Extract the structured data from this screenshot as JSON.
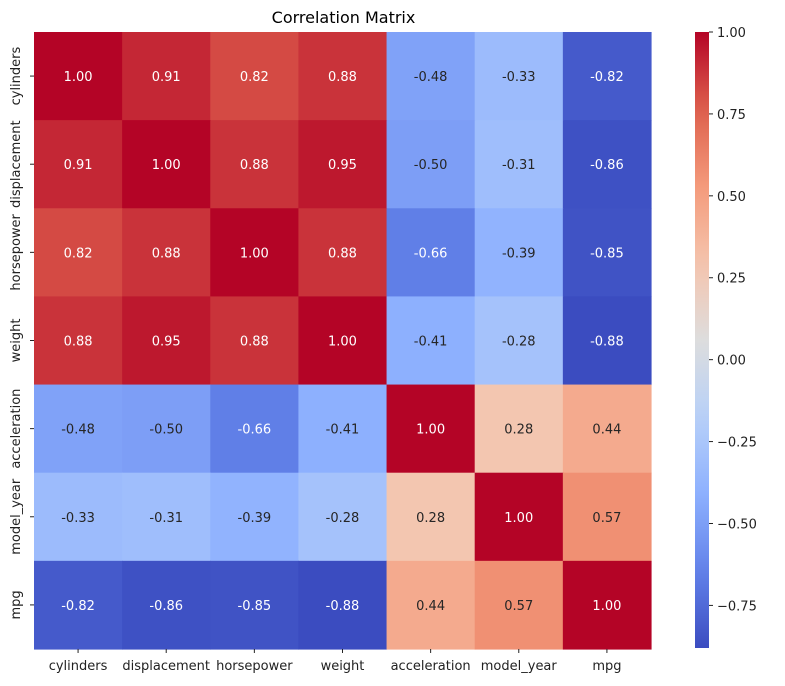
{
  "chart_data": {
    "type": "heatmap",
    "title": "Correlation Matrix",
    "xlabel": "",
    "ylabel": "",
    "variables": [
      "cylinders",
      "displacement",
      "horsepower",
      "weight",
      "acceleration",
      "model_year",
      "mpg"
    ],
    "values": [
      [
        1.0,
        0.91,
        0.82,
        0.88,
        -0.48,
        -0.33,
        -0.82
      ],
      [
        0.91,
        1.0,
        0.88,
        0.95,
        -0.5,
        -0.31,
        -0.86
      ],
      [
        0.82,
        0.88,
        1.0,
        0.88,
        -0.66,
        -0.39,
        -0.85
      ],
      [
        0.88,
        0.95,
        0.88,
        1.0,
        -0.41,
        -0.28,
        -0.88
      ],
      [
        -0.48,
        -0.5,
        -0.66,
        -0.41,
        1.0,
        0.28,
        0.44
      ],
      [
        -0.33,
        -0.31,
        -0.39,
        -0.28,
        0.28,
        1.0,
        0.57
      ],
      [
        -0.82,
        -0.86,
        -0.85,
        -0.88,
        0.44,
        0.57,
        1.0
      ]
    ],
    "value_format": "0.00",
    "colormap": "coolwarm",
    "vmin": -0.88,
    "vmax": 1.0,
    "colorbar": {
      "ticks": [
        1.0,
        0.75,
        0.5,
        0.25,
        0.0,
        -0.25,
        -0.5,
        -0.75
      ],
      "tick_labels": [
        "1.00",
        "0.75",
        "0.50",
        "0.25",
        "0.00",
        "−0.25",
        "−0.50",
        "−0.75"
      ]
    },
    "grid": false,
    "legend": "colorbar-right"
  }
}
